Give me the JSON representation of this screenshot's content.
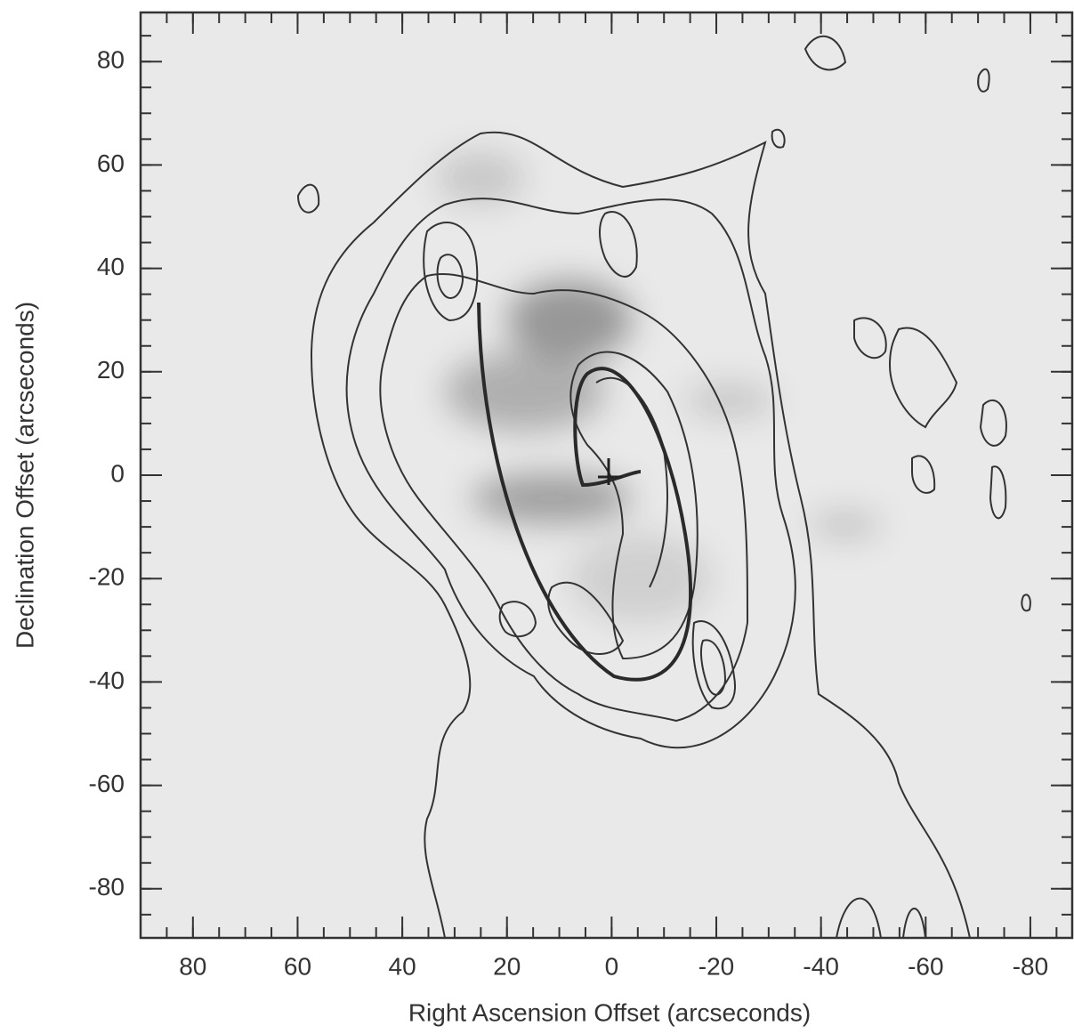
{
  "chart_data": {
    "type": "contour",
    "xlabel": "Right Ascension Offset (arcseconds)",
    "ylabel": "Declination Offset (arcseconds)",
    "xlim": [
      90,
      -88
    ],
    "ylim": [
      89.5,
      -89.5
    ],
    "xticks": [
      80,
      60,
      40,
      20,
      0,
      -20,
      -40,
      -60,
      -80
    ],
    "yticks": [
      80,
      60,
      40,
      20,
      0,
      -20,
      -40,
      -60,
      -80
    ],
    "minor_tick_step": 5
  }
}
